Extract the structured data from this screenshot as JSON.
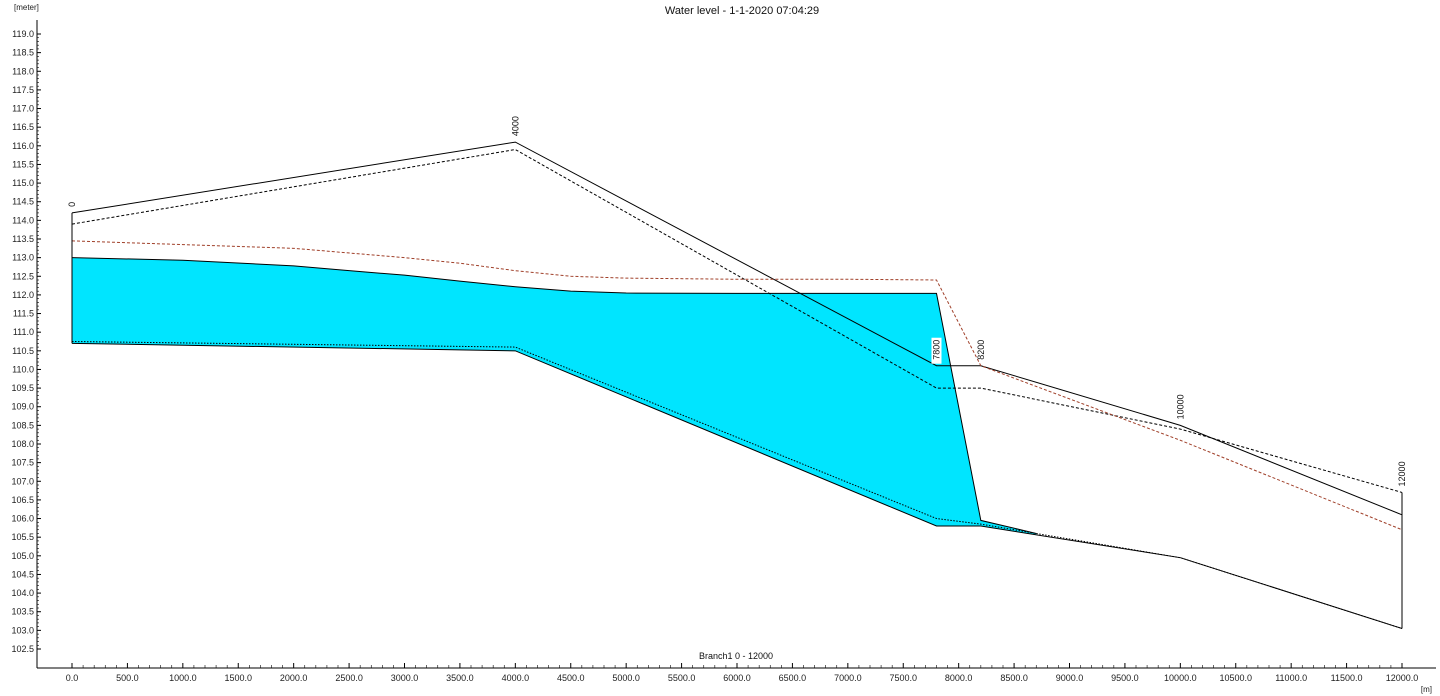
{
  "chart_data": {
    "type": "area",
    "title": "Water level - 1-1-2020 07:04:29",
    "y_unit": "[meter]",
    "x_unit": "[m]",
    "branch_label": "Branch1  0 - 12000",
    "xlim": [
      0,
      12000
    ],
    "ylim": [
      102.5,
      119.0
    ],
    "x_ticks": [
      0,
      500,
      1000,
      1500,
      2000,
      2500,
      3000,
      3500,
      4000,
      4500,
      5000,
      5500,
      6000,
      6500,
      7000,
      7500,
      8000,
      8500,
      9000,
      9500,
      10000,
      10500,
      11000,
      11500,
      12000
    ],
    "x_tick_labels": [
      "0.0",
      "500.0",
      "1000.0",
      "1500.0",
      "2000.0",
      "2500.0",
      "3000.0",
      "3500.0",
      "4000.0",
      "4500.0",
      "5000.0",
      "5500.0",
      "6000.0",
      "6500.0",
      "7000.0",
      "7500.0",
      "8000.0",
      "8500.0",
      "9000.0",
      "9500.0",
      "10000.0",
      "10500.0",
      "11000.0",
      "11500.0",
      "12000.0"
    ],
    "y_ticks": [
      102.5,
      103.0,
      103.5,
      104.0,
      104.5,
      105.0,
      105.5,
      106.0,
      106.5,
      107.0,
      107.5,
      108.0,
      108.5,
      109.0,
      109.5,
      110.0,
      110.5,
      111.0,
      111.5,
      112.0,
      112.5,
      113.0,
      113.5,
      114.0,
      114.5,
      115.0,
      115.5,
      116.0,
      116.5,
      117.0,
      117.5,
      118.0,
      118.5,
      119.0
    ],
    "y_tick_labels": [
      "102.5",
      "103.0",
      "103.5",
      "104.0",
      "104.5",
      "105.0",
      "105.5",
      "106.0",
      "106.5",
      "107.0",
      "107.5",
      "108.0",
      "108.5",
      "109.0",
      "109.5",
      "110.0",
      "110.5",
      "111.0",
      "111.5",
      "112.0",
      "112.5",
      "113.0",
      "113.5",
      "114.0",
      "114.5",
      "115.0",
      "115.5",
      "116.0",
      "116.5",
      "117.0",
      "117.5",
      "118.0",
      "118.5",
      "119.0"
    ],
    "nodes": [
      {
        "x": 0,
        "label": "0"
      },
      {
        "x": 4000,
        "label": "4000"
      },
      {
        "x": 7800,
        "label": "7800"
      },
      {
        "x": 8200,
        "label": "8200"
      },
      {
        "x": 10000,
        "label": "10000"
      },
      {
        "x": 12000,
        "label": "12000"
      }
    ],
    "series": [
      {
        "key": "bank-top",
        "style": "solid",
        "color": "#000000",
        "x": [
          0,
          4000,
          7800,
          8200,
          10000,
          12000
        ],
        "y": [
          114.2,
          116.1,
          110.1,
          110.1,
          108.5,
          106.1
        ]
      },
      {
        "key": "bank-inner",
        "style": "dashed",
        "color": "#000000",
        "x": [
          0,
          4000,
          7800,
          8200,
          10000,
          12000
        ],
        "y": [
          113.9,
          115.9,
          109.5,
          109.5,
          108.4,
          106.7
        ]
      },
      {
        "key": "max-water-level",
        "style": "dashed",
        "color": "#a0402a",
        "x": [
          0,
          1000,
          2000,
          3000,
          3500,
          4000,
          4500,
          5000,
          6000,
          7000,
          7800,
          8200,
          10000,
          12000
        ],
        "y": [
          113.45,
          113.35,
          113.25,
          113.0,
          112.85,
          112.65,
          112.5,
          112.45,
          112.42,
          112.42,
          112.4,
          110.1,
          108.1,
          105.7
        ]
      },
      {
        "key": "water-level",
        "style": "solid",
        "color": "#000000",
        "x": [
          0,
          1000,
          2000,
          2500,
          3000,
          3500,
          4000,
          4500,
          5000,
          6000,
          7000,
          7500,
          7800,
          8200,
          8700
        ],
        "y": [
          113.0,
          112.93,
          112.78,
          112.65,
          112.53,
          112.37,
          112.22,
          112.1,
          112.05,
          112.04,
          112.04,
          112.04,
          112.04,
          105.95,
          105.6
        ]
      },
      {
        "key": "bed-level",
        "style": "solid",
        "color": "#000000",
        "x": [
          0,
          4000,
          7800,
          8200,
          10000,
          12000
        ],
        "y": [
          110.7,
          110.5,
          105.8,
          105.8,
          104.95,
          103.05
        ]
      },
      {
        "key": "bed-level-dotted",
        "style": "dotted",
        "color": "#000000",
        "x": [
          0,
          4000,
          7800,
          8200,
          10000,
          12000
        ],
        "y": [
          110.75,
          110.6,
          106.0,
          105.85,
          104.95,
          103.05
        ]
      }
    ],
    "fill": {
      "color": "#00e5ff",
      "between": [
        "water-level",
        "bed-level"
      ]
    },
    "grid": false,
    "legend": "none"
  }
}
